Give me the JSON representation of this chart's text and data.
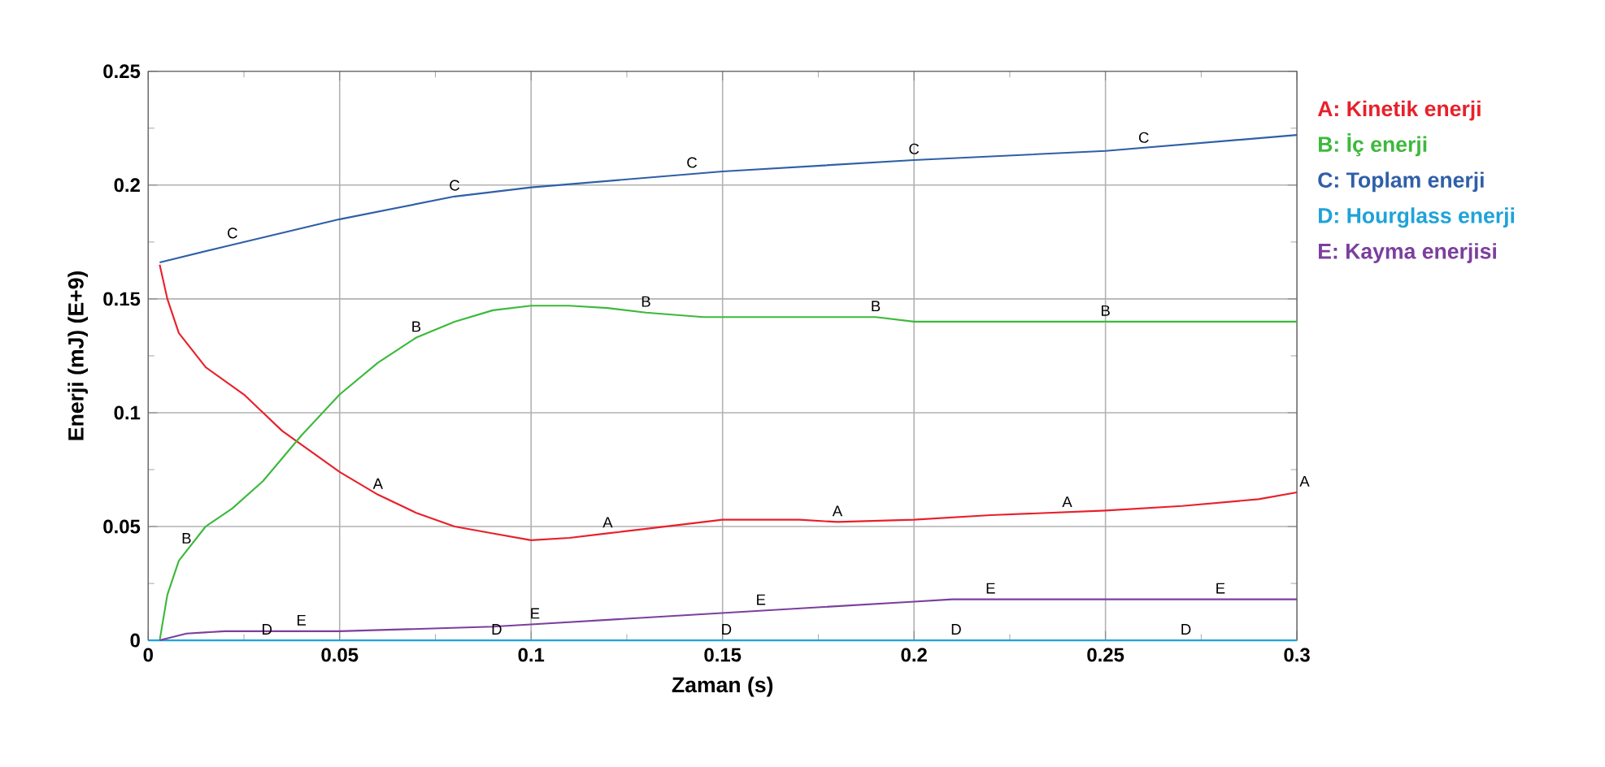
{
  "chart_data": {
    "type": "line",
    "xlabel": "Zaman (s)",
    "ylabel": "Enerji (mJ) (E+9)",
    "xlim": [
      0,
      0.3
    ],
    "ylim": [
      0,
      0.25
    ],
    "xticks": [
      0,
      0.05,
      0.1,
      0.15,
      0.2,
      0.25,
      0.3
    ],
    "yticks": [
      0,
      0.05,
      0.1,
      0.15,
      0.2,
      0.25
    ],
    "grid": true,
    "marker": "none",
    "line_style": "solid",
    "series": [
      {
        "name": "A: Kinetik enerji",
        "color": "#e8202a",
        "x": [
          0.003,
          0.005,
          0.008,
          0.015,
          0.025,
          0.035,
          0.05,
          0.06,
          0.07,
          0.08,
          0.09,
          0.1,
          0.11,
          0.12,
          0.13,
          0.15,
          0.17,
          0.18,
          0.2,
          0.22,
          0.25,
          0.27,
          0.29,
          0.3
        ],
        "values": [
          0.165,
          0.15,
          0.135,
          0.12,
          0.108,
          0.092,
          0.074,
          0.064,
          0.056,
          0.05,
          0.047,
          0.044,
          0.045,
          0.047,
          0.049,
          0.053,
          0.053,
          0.052,
          0.053,
          0.055,
          0.057,
          0.059,
          0.062,
          0.065
        ]
      },
      {
        "name": "B: İç enerji",
        "color": "#3cb93c",
        "x": [
          0.003,
          0.005,
          0.008,
          0.015,
          0.022,
          0.03,
          0.04,
          0.05,
          0.06,
          0.07,
          0.08,
          0.09,
          0.1,
          0.11,
          0.12,
          0.13,
          0.145,
          0.19,
          0.2,
          0.25,
          0.3
        ],
        "values": [
          0,
          0.02,
          0.035,
          0.05,
          0.058,
          0.07,
          0.09,
          0.108,
          0.122,
          0.133,
          0.14,
          0.145,
          0.147,
          0.147,
          0.146,
          0.144,
          0.142,
          0.142,
          0.14,
          0.14,
          0.14
        ]
      },
      {
        "name": "C: Toplam enerji",
        "color": "#2f5fa8",
        "x": [
          0.003,
          0.02,
          0.05,
          0.08,
          0.1,
          0.15,
          0.2,
          0.25,
          0.3
        ],
        "values": [
          0.166,
          0.173,
          0.185,
          0.195,
          0.199,
          0.206,
          0.211,
          0.215,
          0.222
        ]
      },
      {
        "name": "D: Hourglass enerji",
        "color": "#1fa3d8",
        "x": [
          0,
          0.3
        ],
        "values": [
          0,
          0
        ]
      },
      {
        "name": "E: Kayma enerjisi",
        "color": "#7b3f9e",
        "x": [
          0.003,
          0.01,
          0.02,
          0.05,
          0.09,
          0.1,
          0.15,
          0.2,
          0.21,
          0.3
        ],
        "values": [
          0,
          0.003,
          0.004,
          0.004,
          0.006,
          0.007,
          0.012,
          0.017,
          0.018,
          0.018
        ]
      }
    ],
    "annotations": [
      {
        "text": "A",
        "x": 0.06,
        "y": 0.064
      },
      {
        "text": "A",
        "x": 0.12,
        "y": 0.047
      },
      {
        "text": "A",
        "x": 0.18,
        "y": 0.052
      },
      {
        "text": "A",
        "x": 0.24,
        "y": 0.056
      },
      {
        "text": "A",
        "x": 0.3,
        "y": 0.065
      },
      {
        "text": "B",
        "x": 0.01,
        "y": 0.04
      },
      {
        "text": "B",
        "x": 0.07,
        "y": 0.133
      },
      {
        "text": "B",
        "x": 0.13,
        "y": 0.144
      },
      {
        "text": "B",
        "x": 0.19,
        "y": 0.142
      },
      {
        "text": "B",
        "x": 0.25,
        "y": 0.14
      },
      {
        "text": "C",
        "x": 0.022,
        "y": 0.174
      },
      {
        "text": "C",
        "x": 0.08,
        "y": 0.195
      },
      {
        "text": "C",
        "x": 0.142,
        "y": 0.205
      },
      {
        "text": "C",
        "x": 0.2,
        "y": 0.211
      },
      {
        "text": "C",
        "x": 0.26,
        "y": 0.216
      },
      {
        "text": "D",
        "x": 0.031,
        "y": 0
      },
      {
        "text": "D",
        "x": 0.091,
        "y": 0
      },
      {
        "text": "D",
        "x": 0.151,
        "y": 0
      },
      {
        "text": "D",
        "x": 0.211,
        "y": 0
      },
      {
        "text": "D",
        "x": 0.271,
        "y": 0
      },
      {
        "text": "E",
        "x": 0.04,
        "y": 0.004
      },
      {
        "text": "E",
        "x": 0.101,
        "y": 0.007
      },
      {
        "text": "E",
        "x": 0.16,
        "y": 0.013
      },
      {
        "text": "E",
        "x": 0.22,
        "y": 0.018
      },
      {
        "text": "E",
        "x": 0.28,
        "y": 0.018
      }
    ]
  }
}
